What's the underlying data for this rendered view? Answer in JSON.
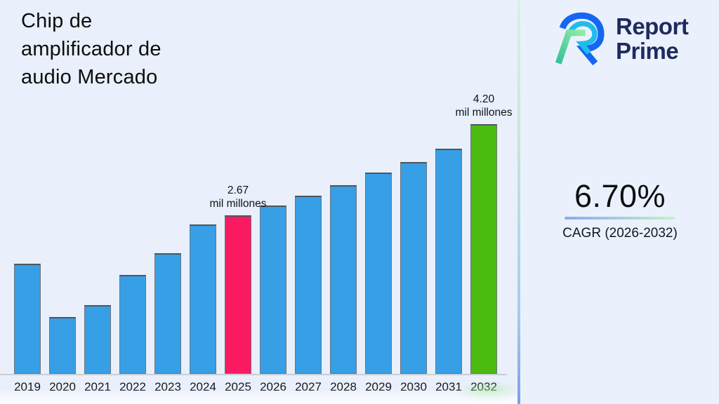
{
  "header": {
    "title": "Chip de\namplificador de\naudio Mercado"
  },
  "brand": {
    "name_line1": "Report",
    "name_line2": "Prime"
  },
  "stats": {
    "cagr_value": "6.70%",
    "cagr_label": "CAGR (2026-2032)"
  },
  "colors": {
    "background": "#E9EFFB",
    "panel_right": "#EBF1FC",
    "title_text": "#0D0D0D",
    "brand_navy": "#1F2A5E",
    "bar_blue": "#379FE6",
    "bar_pink": "#FA1A61",
    "bar_green": "#4CBB0F",
    "underline_left": "#8FA8F0",
    "underline_right": "#BFF5C8",
    "divider_top": "#D8F2DF",
    "divider_bottom": "#7E9FE6"
  },
  "chart_data": {
    "type": "bar",
    "title": "Chip de amplificador de audio Mercado",
    "xlabel": "",
    "ylabel": "",
    "unit": "mil millones",
    "categories": [
      "2019",
      "2020",
      "2021",
      "2022",
      "2023",
      "2024",
      "2025",
      "2026",
      "2027",
      "2028",
      "2029",
      "2030",
      "2031",
      "2032"
    ],
    "values": [
      1.85,
      0.95,
      1.16,
      1.66,
      2.03,
      2.51,
      2.67,
      2.83,
      2.99,
      3.17,
      3.38,
      3.56,
      3.79,
      4.2
    ],
    "ylim": [
      0,
      4.6
    ],
    "grid": false,
    "legend": false,
    "bar_colors": {
      "default": "#379FE6",
      "2025": "#FA1A61",
      "2032": "#4CBB0F"
    },
    "annotations": [
      {
        "category": "2025",
        "value_text": "2.67",
        "unit_text": "mil millones"
      },
      {
        "category": "2032",
        "value_text": "4.20",
        "unit_text": "mil millones"
      }
    ]
  }
}
